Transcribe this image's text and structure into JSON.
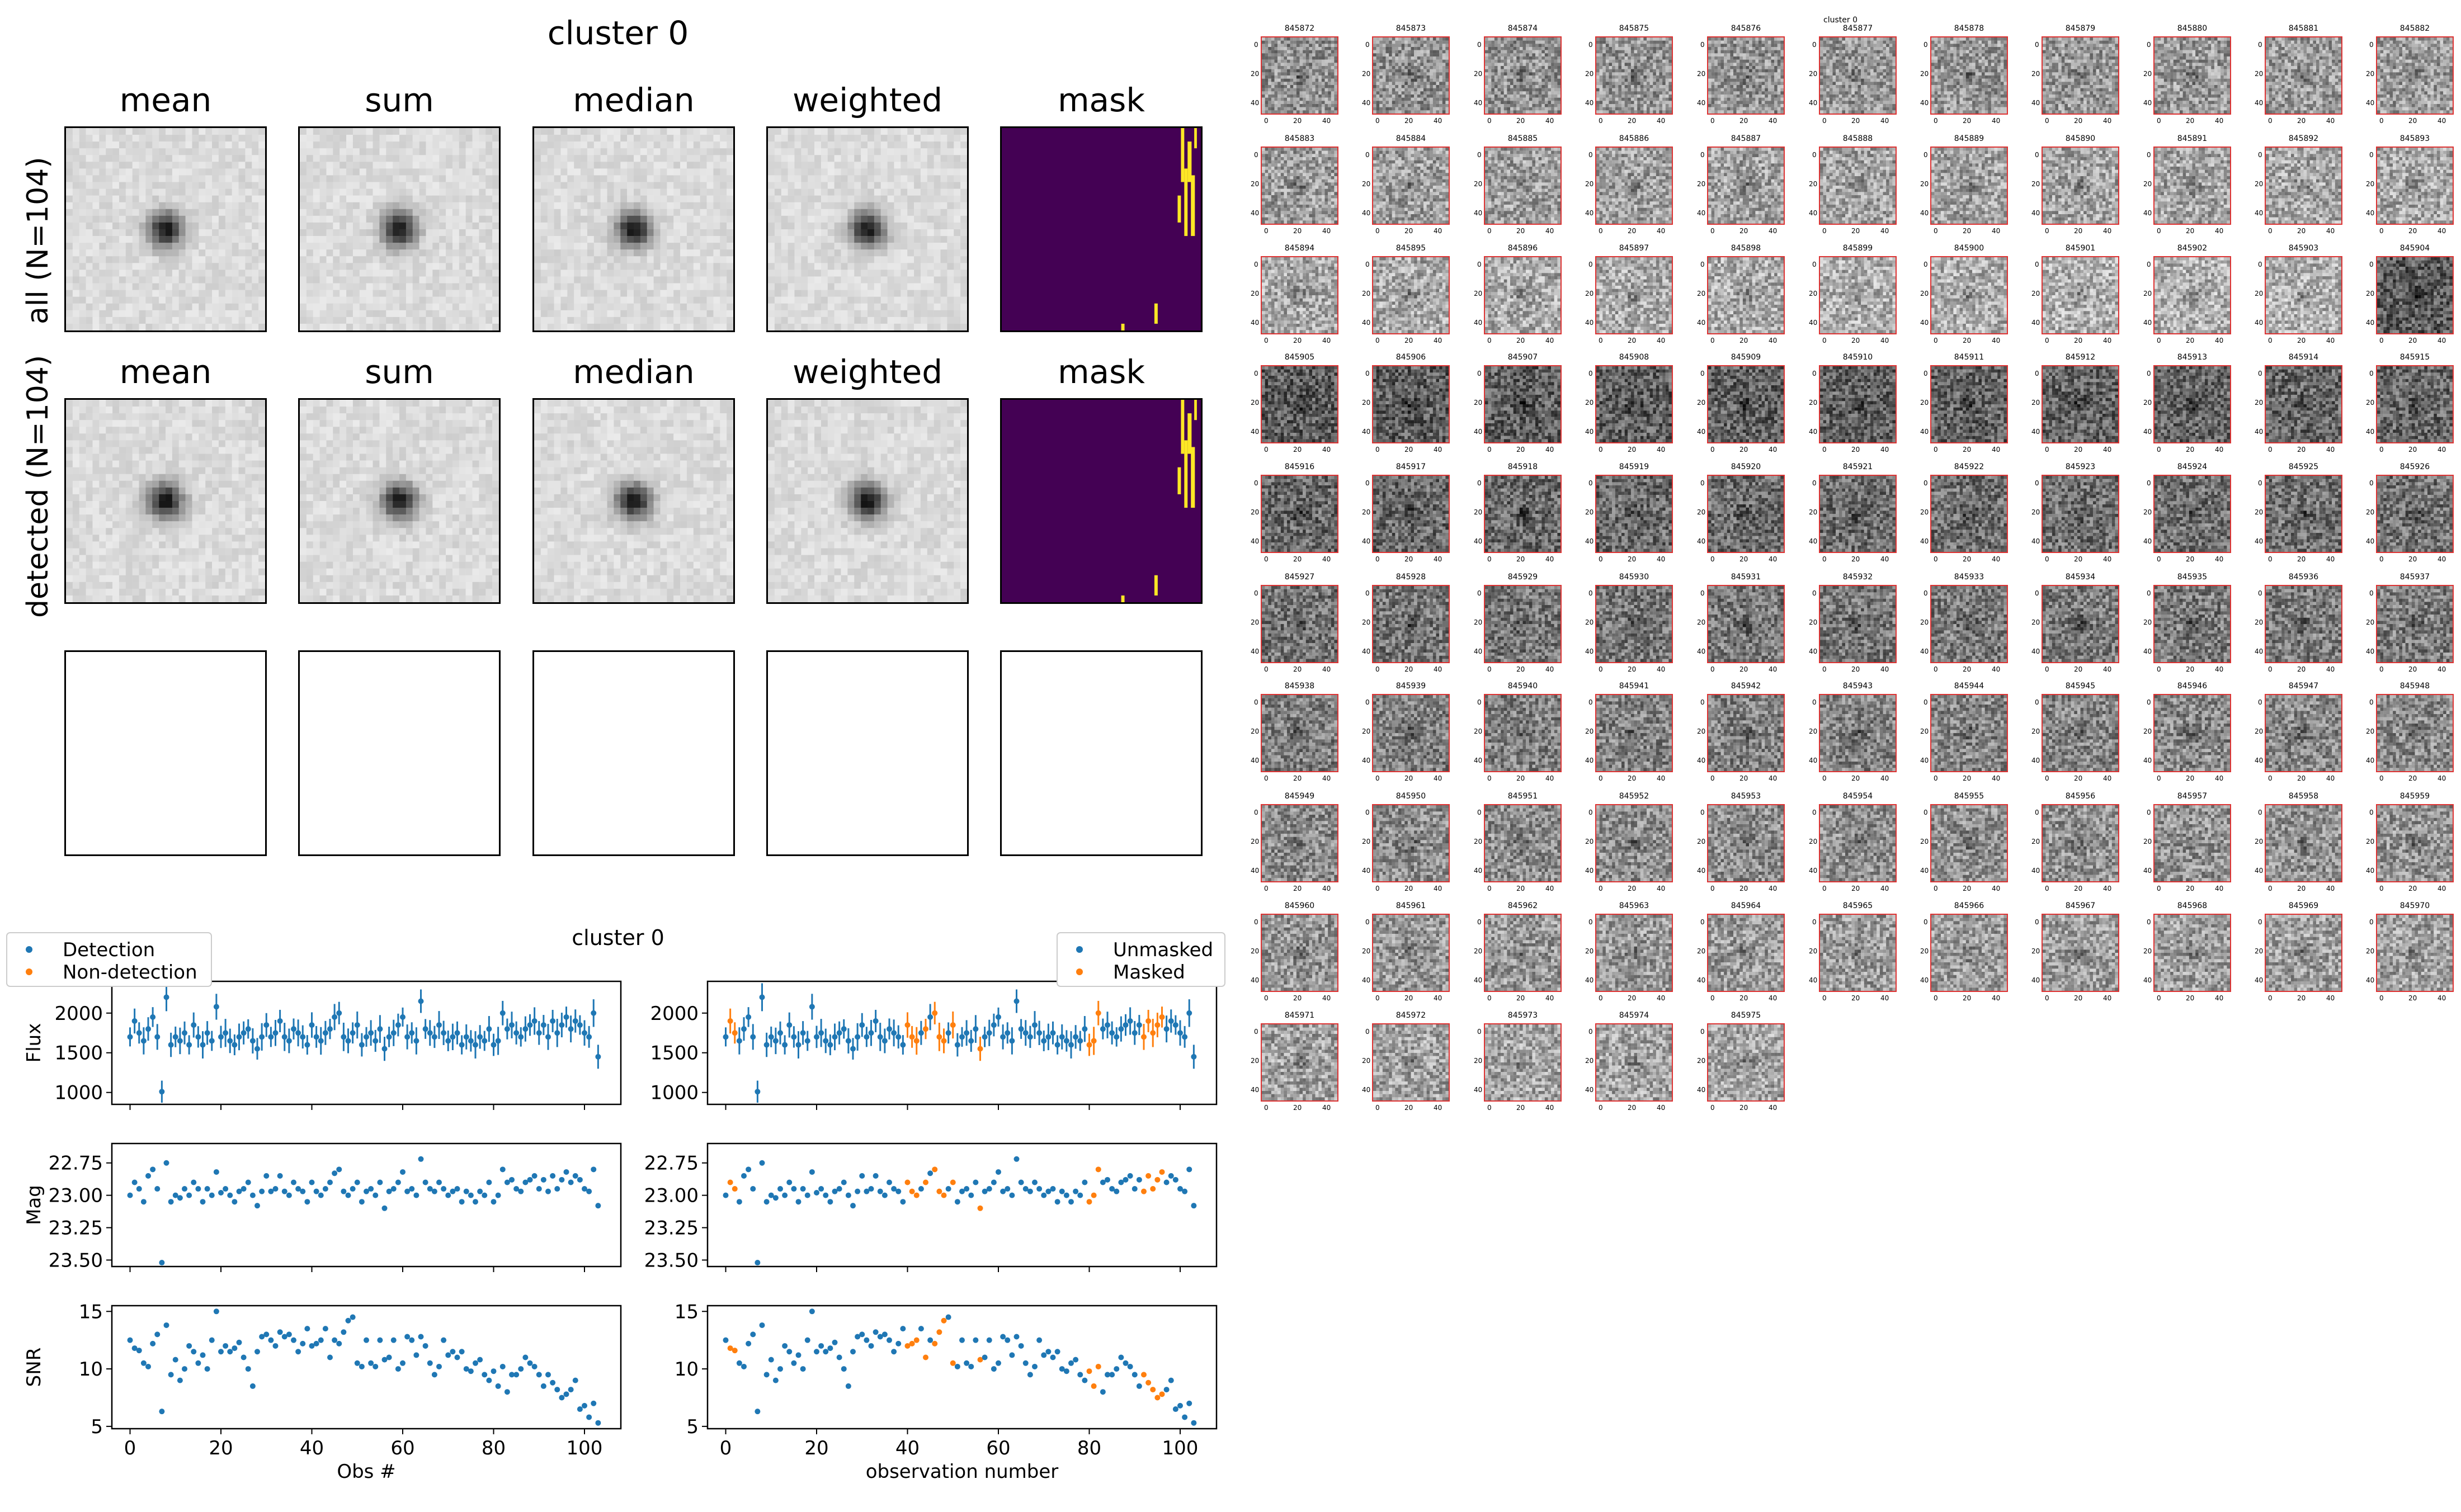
{
  "stamps": {
    "title": "cluster 0",
    "column_titles": [
      "mean",
      "sum",
      "median",
      "weighted",
      "mask"
    ],
    "row_labels": [
      "all (N=104)",
      "detected (N=104)"
    ],
    "mask_colors": {
      "background": "#440154",
      "flag": "#fde725"
    }
  },
  "lightcurve": {
    "title": "cluster 0",
    "legend_left": [
      "Detection",
      "Non-detection"
    ],
    "legend_right": [
      "Unmasked",
      "Masked"
    ],
    "colors": {
      "primary": "#1f77b4",
      "secondary": "#ff7f0e"
    },
    "xlabel_left": "Obs #",
    "xlabel_right": "observation number"
  },
  "chart_data": [
    {
      "type": "scatter",
      "title": "cluster 0",
      "subplots": [
        {
          "ylabel": "Flux",
          "ylim": [
            850,
            2400
          ],
          "yticks": [
            "1000",
            "1500",
            "2000"
          ],
          "yticks_values": [
            1000,
            1500,
            2000
          ],
          "error_bars": true
        },
        {
          "ylabel": "Mag",
          "ylim": [
            23.55,
            22.6
          ],
          "yticks": [
            "22.75",
            "23.00",
            "23.25",
            "23.50"
          ],
          "yticks_values": [
            22.75,
            23.0,
            23.25,
            23.5
          ],
          "inverted": true
        },
        {
          "ylabel": "SNR",
          "ylim": [
            4.8,
            15.5
          ],
          "yticks": [
            "5",
            "10",
            "15"
          ],
          "yticks_values": [
            5,
            10,
            15
          ]
        }
      ],
      "xlim": [
        -4,
        108
      ],
      "xticks": [
        "0",
        "20",
        "40",
        "60",
        "80",
        "100"
      ],
      "xticks_values": [
        0,
        20,
        40,
        60,
        80,
        100
      ],
      "x": [
        0,
        1,
        2,
        3,
        4,
        5,
        6,
        7,
        8,
        9,
        10,
        11,
        12,
        13,
        14,
        15,
        16,
        17,
        18,
        19,
        20,
        21,
        22,
        23,
        24,
        25,
        26,
        27,
        28,
        29,
        30,
        31,
        32,
        33,
        34,
        35,
        36,
        37,
        38,
        39,
        40,
        41,
        42,
        43,
        44,
        45,
        46,
        47,
        48,
        49,
        50,
        51,
        52,
        53,
        54,
        55,
        56,
        57,
        58,
        59,
        60,
        61,
        62,
        63,
        64,
        65,
        66,
        67,
        68,
        69,
        70,
        71,
        72,
        73,
        74,
        75,
        76,
        77,
        78,
        79,
        80,
        81,
        82,
        83,
        84,
        85,
        86,
        87,
        88,
        89,
        90,
        91,
        92,
        93,
        94,
        95,
        96,
        97,
        98,
        99,
        100,
        101,
        102,
        103
      ],
      "flux": [
        1700,
        1900,
        1750,
        1650,
        1800,
        1950,
        1700,
        1010,
        2200,
        1600,
        1700,
        1650,
        1750,
        1600,
        1850,
        1700,
        1600,
        1750,
        1650,
        2080,
        1700,
        1750,
        1650,
        1600,
        1700,
        1750,
        1800,
        1650,
        1550,
        1700,
        1850,
        1700,
        1750,
        1900,
        1700,
        1650,
        1800,
        1750,
        1700,
        1600,
        1850,
        1700,
        1650,
        1750,
        1800,
        1950,
        2000,
        1700,
        1650,
        1750,
        1850,
        1600,
        1700,
        1750,
        1650,
        1800,
        1550,
        1700,
        1750,
        1850,
        1950,
        1700,
        1750,
        1650,
        2150,
        1800,
        1750,
        1700,
        1850,
        1750,
        1650,
        1700,
        1750,
        1600,
        1700,
        1650,
        1600,
        1700,
        1650,
        1800,
        1600,
        1650,
        2000,
        1800,
        1850,
        1750,
        1700,
        1800,
        1850,
        1900,
        1750,
        1850,
        1700,
        1900,
        1750,
        1850,
        1950,
        1800,
        1900,
        1850,
        1750,
        1700,
        2000,
        1450
      ],
      "mag": [
        23.0,
        22.9,
        22.95,
        23.05,
        22.85,
        22.8,
        22.95,
        23.52,
        22.75,
        23.05,
        23.0,
        23.02,
        22.95,
        23.0,
        22.9,
        22.95,
        23.05,
        22.95,
        23.0,
        22.82,
        22.98,
        22.95,
        23.0,
        23.05,
        22.97,
        22.95,
        22.9,
        23.0,
        23.08,
        22.97,
        22.85,
        22.97,
        22.95,
        22.85,
        22.97,
        23.0,
        22.9,
        22.95,
        22.97,
        23.05,
        22.9,
        22.97,
        23.0,
        22.95,
        22.9,
        22.83,
        22.8,
        22.97,
        23.0,
        22.95,
        22.9,
        23.05,
        22.97,
        22.95,
        23.0,
        22.9,
        23.1,
        22.97,
        22.95,
        22.9,
        22.82,
        22.97,
        22.95,
        23.0,
        22.72,
        22.9,
        22.95,
        22.97,
        22.9,
        22.95,
        23.0,
        22.97,
        22.95,
        23.05,
        22.97,
        23.0,
        23.05,
        22.97,
        23.0,
        22.9,
        23.05,
        23.0,
        22.8,
        22.9,
        22.88,
        22.95,
        22.97,
        22.9,
        22.88,
        22.85,
        22.95,
        22.88,
        22.97,
        22.85,
        22.95,
        22.88,
        22.82,
        22.9,
        22.85,
        22.88,
        22.95,
        22.97,
        22.8,
        23.08
      ],
      "snr": [
        12.5,
        11.8,
        11.6,
        10.5,
        10.2,
        12.2,
        13.0,
        6.3,
        13.8,
        9.5,
        10.8,
        9.0,
        10.0,
        12.0,
        11.5,
        10.5,
        11.2,
        10.0,
        12.5,
        15.0,
        11.5,
        12.0,
        11.5,
        11.8,
        12.3,
        11.0,
        10.0,
        8.5,
        11.5,
        12.8,
        13.0,
        12.5,
        12.0,
        13.2,
        12.8,
        13.0,
        12.5,
        11.5,
        12.2,
        13.5,
        12.0,
        12.2,
        12.5,
        13.5,
        11.0,
        12.5,
        12.2,
        13.2,
        14.2,
        14.5,
        10.5,
        10.2,
        12.5,
        10.5,
        10.2,
        12.5,
        10.8,
        11.0,
        12.5,
        10.0,
        10.5,
        12.8,
        12.5,
        11.2,
        12.8,
        12.0,
        10.5,
        9.5,
        10.2,
        12.5,
        11.2,
        11.5,
        11.0,
        11.5,
        10.0,
        9.8,
        10.5,
        10.8,
        9.5,
        9.0,
        9.8,
        8.5,
        10.2,
        8.0,
        9.5,
        9.5,
        10.0,
        11.0,
        10.5,
        10.2,
        9.5,
        8.5,
        9.5,
        8.8,
        8.2,
        7.5,
        7.8,
        8.2,
        9.0,
        6.5,
        6.8,
        5.8,
        7.0,
        5.3
      ],
      "masked_indices": [
        1,
        2,
        40,
        41,
        42,
        44,
        46,
        47,
        48,
        50,
        56,
        80,
        81,
        82,
        92,
        93,
        94,
        95,
        96
      ]
    }
  ],
  "thumbnails": {
    "top_label": "cluster 0",
    "ids": [
      "845872",
      "845873",
      "845874",
      "845875",
      "845876",
      "845877",
      "845878",
      "845879",
      "845880",
      "845881",
      "845882",
      "845883",
      "845884",
      "845885",
      "845886",
      "845887",
      "845888",
      "845889",
      "845890",
      "845891",
      "845892",
      "845893",
      "845894",
      "845895",
      "845896",
      "845897",
      "845898",
      "845899",
      "845900",
      "845901",
      "845902",
      "845903",
      "845904",
      "845905",
      "845906",
      "845907",
      "845908",
      "845909",
      "845910",
      "845911",
      "845912",
      "845913",
      "845914",
      "845915",
      "845916",
      "845917",
      "845918",
      "845919",
      "845920",
      "845921",
      "845922",
      "845923",
      "845924",
      "845925",
      "845926",
      "845927",
      "845928",
      "845929",
      "845930",
      "845931",
      "845932",
      "845933",
      "845934",
      "845935",
      "845936",
      "845937",
      "845938",
      "845939",
      "845940",
      "845941",
      "845942",
      "845943",
      "845944",
      "845945",
      "845946",
      "845947",
      "845948",
      "845949",
      "845950",
      "845951",
      "845952",
      "845953",
      "845954",
      "845955",
      "845956",
      "845957",
      "845958",
      "845959",
      "845960",
      "845961",
      "845962",
      "845963",
      "845964",
      "845965",
      "845966",
      "845967",
      "845968",
      "845969",
      "845970",
      "845971",
      "845972",
      "845973",
      "845974",
      "845975"
    ],
    "yticks": [
      "0",
      "20",
      "40"
    ],
    "xticks": [
      "0",
      "20",
      "40"
    ]
  }
}
